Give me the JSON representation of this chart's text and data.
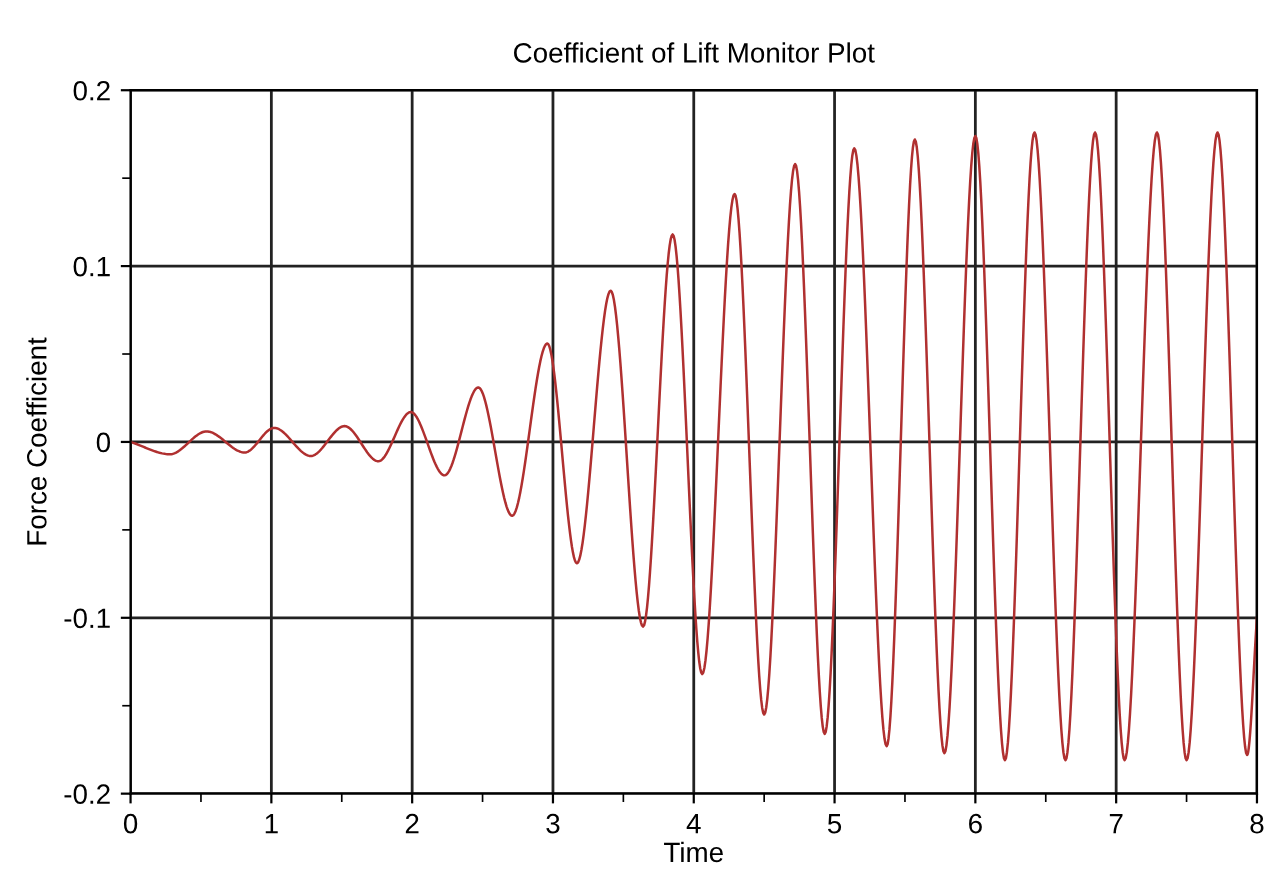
{
  "chart_data": {
    "type": "line",
    "title": "Coefficient of Lift Monitor Plot",
    "xlabel": "Time",
    "ylabel": "Force Coefficient",
    "xlim": [
      0,
      8
    ],
    "ylim": [
      -0.2,
      0.2
    ],
    "xticks": [
      0,
      {
        "value": 0.5,
        "label": null
      },
      1,
      {
        "value": 1.5,
        "label": null
      },
      2,
      {
        "value": 2.5,
        "label": null
      },
      3,
      {
        "value": 3.5,
        "label": null
      },
      4,
      {
        "value": 4.5,
        "label": null
      },
      5,
      {
        "value": 5.5,
        "label": null
      },
      6,
      {
        "value": 6.5,
        "label": null
      },
      7,
      {
        "value": 7.5,
        "label": null
      },
      8
    ],
    "yticks": [
      -0.2,
      {
        "value": -0.15,
        "label": null
      },
      -0.1,
      {
        "value": -0.05,
        "label": null
      },
      0,
      {
        "value": 0.05,
        "label": null
      },
      0.1,
      {
        "value": 0.15,
        "label": null
      },
      0.2
    ],
    "grid": true,
    "marker": "none",
    "line_style": "solid",
    "series": [
      {
        "color": "#b03030",
        "x": [
          0,
          0.28,
          0.54,
          0.81,
          1.02,
          1.28,
          1.52,
          1.76,
          1.99,
          2.23,
          2.47,
          2.71,
          2.96,
          3.17,
          3.41,
          3.64,
          3.85,
          4.06,
          4.29,
          4.5,
          4.72,
          4.93,
          5.14,
          5.37,
          5.57,
          5.78,
          6.0,
          6.21,
          6.42,
          6.64,
          6.85,
          7.06,
          7.29,
          7.5,
          7.72,
          7.93,
          8.0
        ],
        "values": [
          0,
          -0.007,
          0.006,
          -0.006,
          0.008,
          -0.008,
          0.009,
          -0.011,
          0.017,
          -0.019,
          0.031,
          -0.042,
          0.056,
          -0.069,
          0.086,
          -0.105,
          0.118,
          -0.132,
          0.141,
          -0.155,
          0.158,
          -0.166,
          0.167,
          -0.173,
          0.172,
          -0.177,
          0.174,
          -0.181,
          0.176,
          -0.181,
          0.176,
          -0.181,
          0.176,
          -0.181,
          0.176,
          -0.178,
          -0.1
        ]
      }
    ]
  }
}
